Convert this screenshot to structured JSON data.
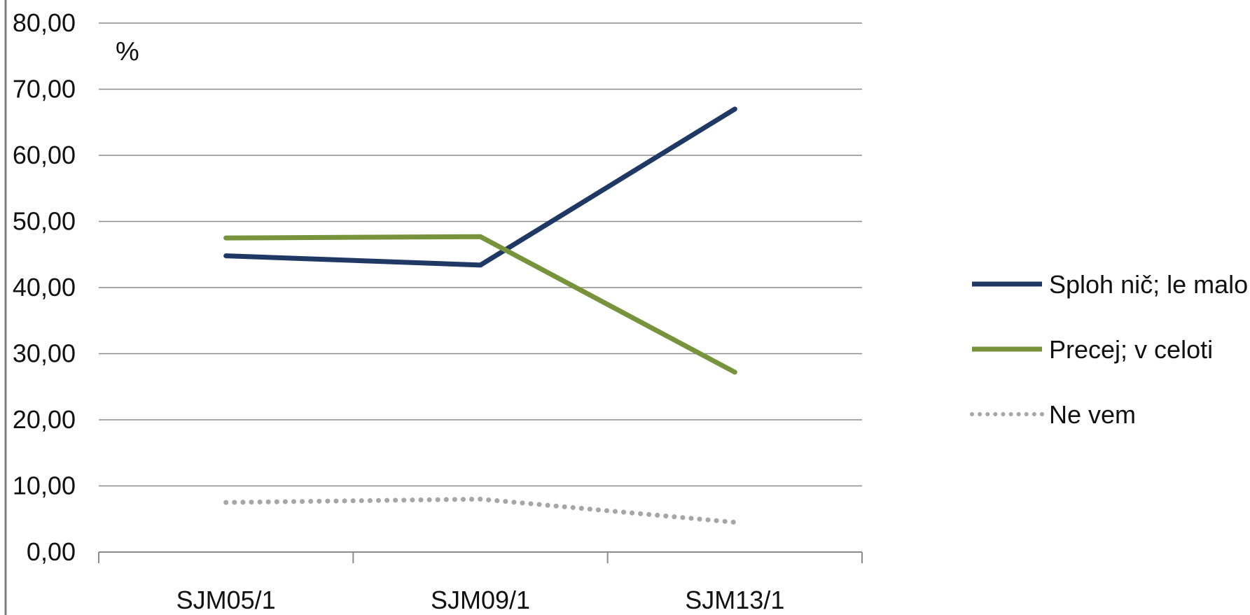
{
  "chart_data": {
    "type": "line",
    "title": "",
    "xlabel": "",
    "ylabel": "%",
    "categories": [
      "SJM05/1",
      "SJM09/1",
      "SJM13/1"
    ],
    "ylim": [
      0,
      80
    ],
    "ytick_step": 10,
    "ytick_labels": [
      "0,00",
      "10,00",
      "20,00",
      "30,00",
      "40,00",
      "50,00",
      "60,00",
      "70,00",
      "80,00"
    ],
    "grid": true,
    "legend_position": "right",
    "series": [
      {
        "name": "Sploh nič; le malo",
        "values": [
          44.8,
          43.4,
          67.0
        ],
        "color": "#1f3864",
        "style": "solid"
      },
      {
        "name": "Precej; v celoti",
        "values": [
          47.5,
          47.7,
          27.2
        ],
        "color": "#77933c",
        "style": "solid"
      },
      {
        "name": "Ne vem",
        "values": [
          7.5,
          8.0,
          4.5
        ],
        "color": "#a6a6a6",
        "style": "dotted"
      }
    ]
  }
}
